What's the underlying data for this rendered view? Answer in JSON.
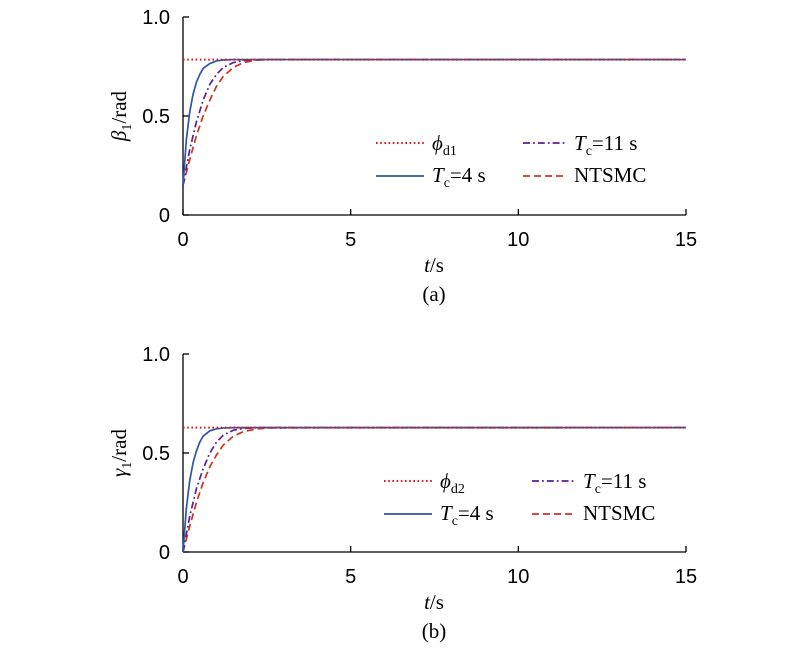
{
  "colors": {
    "reference": "#e3141b",
    "tc4": "#2c56a6",
    "tc11": "#5a1f93",
    "ntsmc": "#d1321f"
  },
  "chart_data": [
    {
      "type": "line",
      "caption": "(a)",
      "ylabel_sym": "β",
      "ylabel_sub": "1",
      "ylabel_unit": "/rad",
      "xlabel_sym": "t",
      "xlabel_unit": "/s",
      "xlim": [
        0,
        15
      ],
      "ylim": [
        0,
        1.0
      ],
      "xticks": [
        "0",
        "5",
        "10",
        "15"
      ],
      "yticks": [
        "0",
        "0.5",
        "1.0"
      ],
      "legend": {
        "ref_sym": "ϕ",
        "ref_sub": "d1",
        "tc4_sym": "T",
        "tc4_sub": "c",
        "tc4_text": "=4 s",
        "tc11_sym": "T",
        "tc11_sub": "c",
        "tc11_text": "=11 s",
        "ntsmc_text": "NTSMC"
      },
      "series": [
        {
          "key": "reference",
          "style": "dotted",
          "x": [
            0,
            15
          ],
          "y": [
            0.785,
            0.785
          ]
        },
        {
          "key": "tc4",
          "style": "solid",
          "x": [
            0,
            0.1,
            0.2,
            0.3,
            0.4,
            0.5,
            0.6,
            0.8,
            1.0,
            1.2,
            1.5,
            15
          ],
          "y": [
            0.15,
            0.38,
            0.52,
            0.61,
            0.67,
            0.71,
            0.74,
            0.765,
            0.778,
            0.783,
            0.785,
            0.785
          ]
        },
        {
          "key": "tc11",
          "style": "dashdot",
          "x": [
            0,
            0.2,
            0.4,
            0.6,
            0.8,
            1.0,
            1.2,
            1.5,
            1.8,
            2.2,
            15
          ],
          "y": [
            0.15,
            0.33,
            0.47,
            0.58,
            0.66,
            0.71,
            0.745,
            0.77,
            0.78,
            0.785,
            0.785
          ]
        },
        {
          "key": "ntsmc",
          "style": "dashed",
          "x": [
            0,
            0.2,
            0.4,
            0.6,
            0.8,
            1.0,
            1.2,
            1.5,
            1.8,
            2.2,
            2.6,
            15
          ],
          "y": [
            0.15,
            0.28,
            0.4,
            0.5,
            0.58,
            0.65,
            0.7,
            0.745,
            0.77,
            0.782,
            0.785,
            0.785
          ]
        }
      ]
    },
    {
      "type": "line",
      "caption": "(b)",
      "ylabel_sym": "γ",
      "ylabel_sub": "1",
      "ylabel_unit": "/rad",
      "xlabel_sym": "t",
      "xlabel_unit": "/s",
      "xlim": [
        0,
        15
      ],
      "ylim": [
        0,
        1.0
      ],
      "xticks": [
        "0",
        "5",
        "10",
        "15"
      ],
      "yticks": [
        "0",
        "0.5",
        "1.0"
      ],
      "legend": {
        "ref_sym": "ϕ",
        "ref_sub": "d2",
        "tc4_sym": "T",
        "tc4_sub": "c",
        "tc4_text": "=4 s",
        "tc11_sym": "T",
        "tc11_sub": "c",
        "tc11_text": "=11 s",
        "ntsmc_text": "NTSMC"
      },
      "series": [
        {
          "key": "reference",
          "style": "dotted",
          "x": [
            0,
            15
          ],
          "y": [
            0.628,
            0.628
          ]
        },
        {
          "key": "tc4",
          "style": "solid",
          "x": [
            0,
            0.1,
            0.2,
            0.3,
            0.4,
            0.5,
            0.6,
            0.8,
            1.0,
            1.2,
            1.5,
            15
          ],
          "y": [
            0.0,
            0.22,
            0.36,
            0.45,
            0.51,
            0.555,
            0.585,
            0.612,
            0.622,
            0.626,
            0.628,
            0.628
          ]
        },
        {
          "key": "tc11",
          "style": "dashdot",
          "x": [
            0,
            0.2,
            0.4,
            0.6,
            0.8,
            1.0,
            1.2,
            1.5,
            1.8,
            2.2,
            15
          ],
          "y": [
            0.0,
            0.18,
            0.32,
            0.42,
            0.5,
            0.555,
            0.59,
            0.615,
            0.624,
            0.628,
            0.628
          ]
        },
        {
          "key": "ntsmc",
          "style": "dashed",
          "x": [
            0,
            0.2,
            0.4,
            0.6,
            0.8,
            1.0,
            1.2,
            1.5,
            1.8,
            2.2,
            2.6,
            15
          ],
          "y": [
            0.0,
            0.13,
            0.25,
            0.35,
            0.43,
            0.49,
            0.54,
            0.585,
            0.608,
            0.622,
            0.627,
            0.628
          ]
        }
      ]
    }
  ]
}
